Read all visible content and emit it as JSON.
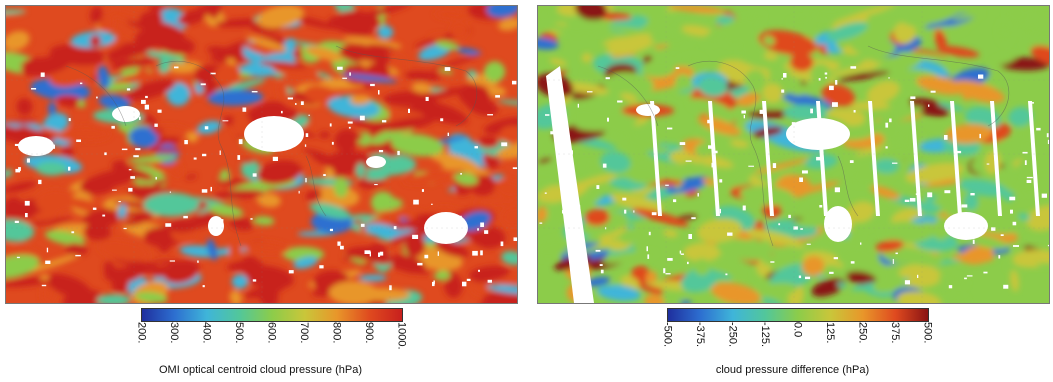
{
  "chart_data": [
    {
      "type": "heatmap",
      "title": "",
      "colorbar_label": "OMI optical centroid cloud pressure (hPa)",
      "colorbar_ticks": [
        "200.",
        "300.",
        "400.",
        "500.",
        "600.",
        "700.",
        "800.",
        "900.",
        "1000."
      ],
      "range": [
        200,
        1000
      ],
      "colormap": [
        "#1f2f9e",
        "#2d6fd0",
        "#3fb5d9",
        "#52c79a",
        "#8ccc4a",
        "#c9c63a",
        "#e8962a",
        "#df4a1f",
        "#c8201e"
      ],
      "dominant_value": 950,
      "missing_color": "#ffffff"
    },
    {
      "type": "heatmap",
      "title": "",
      "colorbar_label": "cloud pressure difference (hPa)",
      "colorbar_ticks": [
        "-500.",
        "-375.",
        "-250.",
        "-125.",
        "0.0",
        "125.",
        "250.",
        "375.",
        "500."
      ],
      "range": [
        -500,
        500
      ],
      "colormap": [
        "#1f2f9e",
        "#2d6fd0",
        "#3fb5d9",
        "#52c79a",
        "#8ccc4a",
        "#c9c63a",
        "#e8962a",
        "#df4a1f",
        "#8a1414"
      ],
      "dominant_value": 0,
      "missing_color": "#ffffff"
    }
  ]
}
